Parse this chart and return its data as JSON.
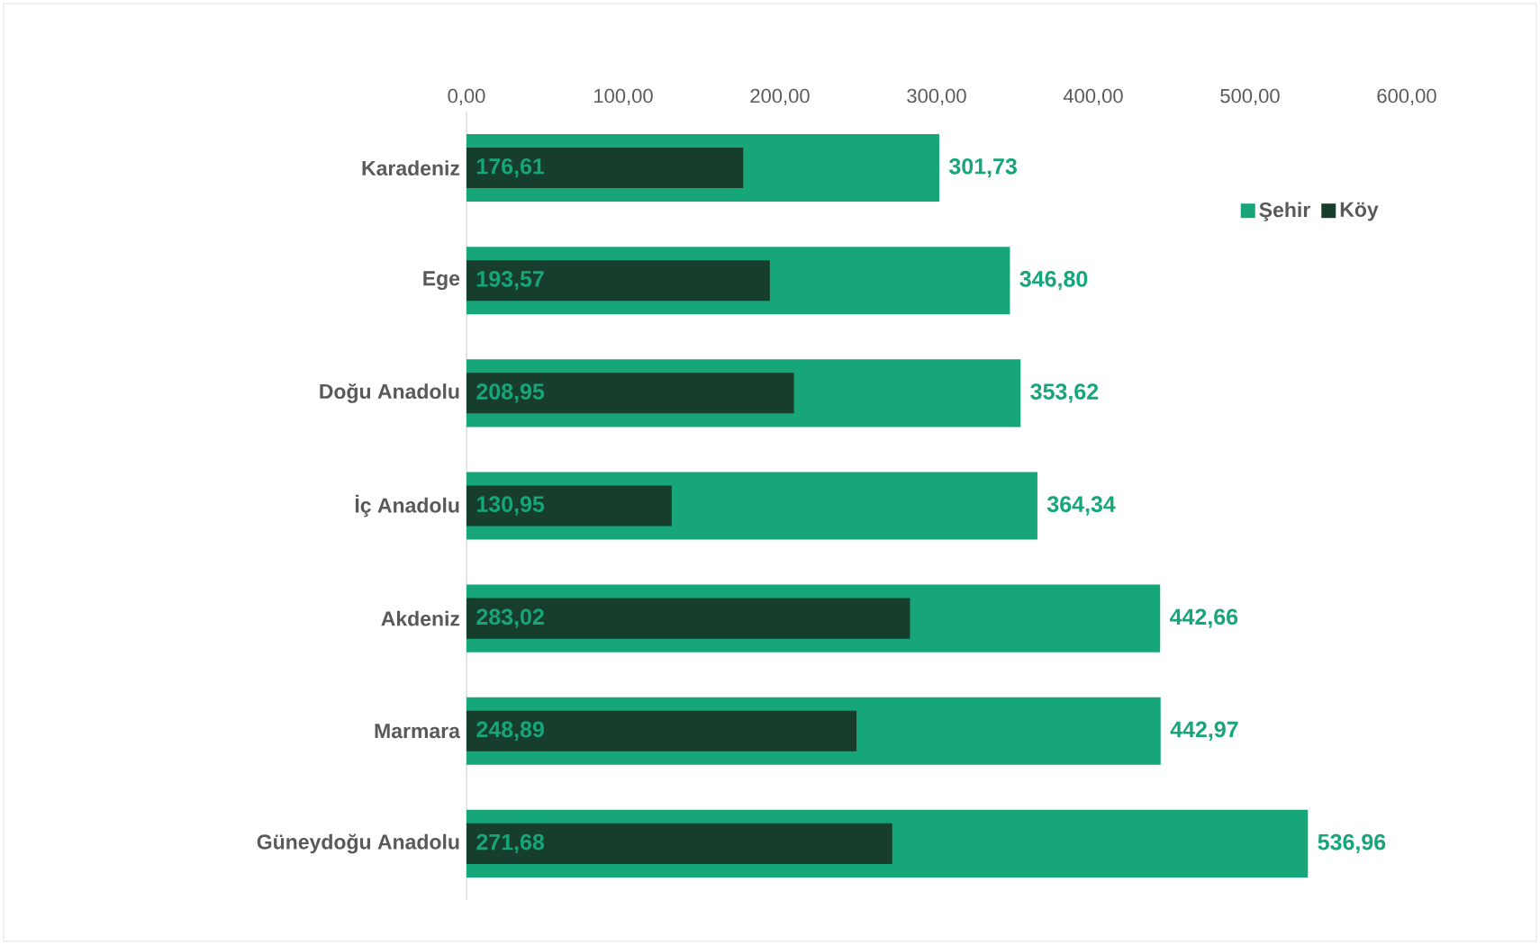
{
  "chart_data": {
    "type": "bar",
    "orientation": "horizontal",
    "categories": [
      "Karadeniz",
      "Ege",
      "Doğu Anadolu",
      "İç Anadolu",
      "Akdeniz",
      "Marmara",
      "Güneydoğu Anadolu"
    ],
    "series": [
      {
        "name": "Şehir",
        "color": "#17a57a",
        "values": [
          301.73,
          346.8,
          353.62,
          364.34,
          442.66,
          442.97,
          536.96
        ],
        "value_labels": [
          "301,73",
          "346,80",
          "353,62",
          "364,34",
          "442,66",
          "442,97",
          "536,96"
        ]
      },
      {
        "name": "Köy",
        "color": "#173d2d",
        "values": [
          176.61,
          193.57,
          208.95,
          130.95,
          283.02,
          248.89,
          271.68
        ],
        "value_labels": [
          "176,61",
          "193,57",
          "208,95",
          "130,95",
          "283,02",
          "248,89",
          "271,68"
        ]
      }
    ],
    "xlim": [
      0,
      600
    ],
    "xticks": [
      {
        "value": 0,
        "label": "0,00"
      },
      {
        "value": 100,
        "label": "100,00"
      },
      {
        "value": 200,
        "label": "200,00"
      },
      {
        "value": 300,
        "label": "300,00"
      },
      {
        "value": 400,
        "label": "400,00"
      },
      {
        "value": 500,
        "label": "500,00"
      },
      {
        "value": 600,
        "label": "600,00"
      }
    ],
    "legend": "top right",
    "grid": false
  }
}
